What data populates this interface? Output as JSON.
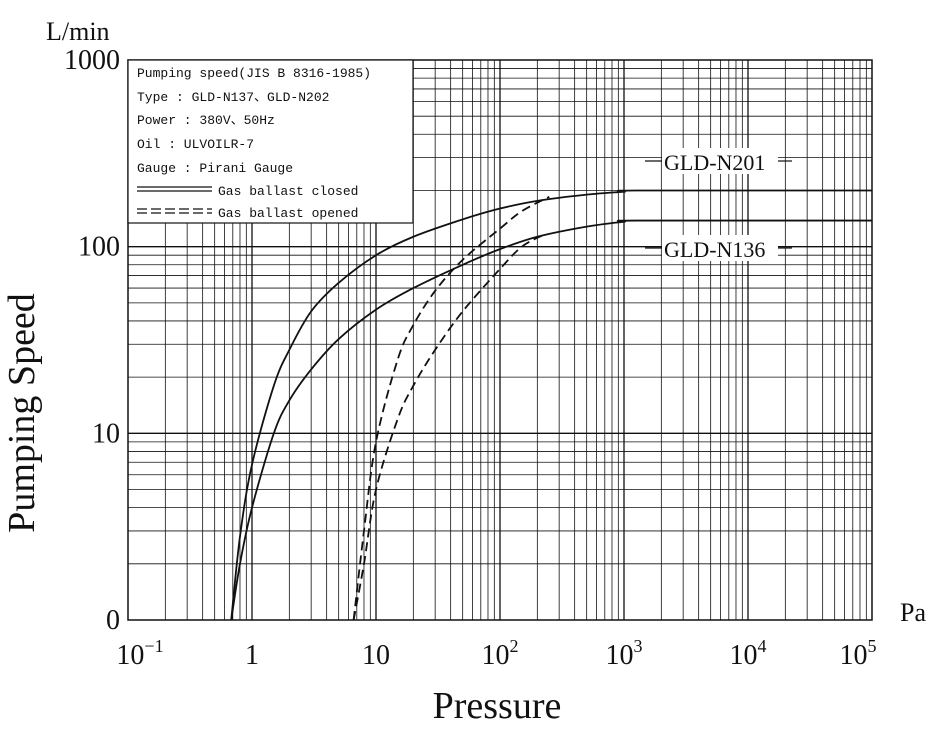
{
  "chart_data": {
    "type": "line",
    "xlabel": "Pressure",
    "ylabel": "Pumping Speed",
    "x_unit": "Pa",
    "y_unit": "L/min",
    "x_scale": "log",
    "y_scale": "log (0 at bottom)",
    "xlim": [
      0.1,
      100000
    ],
    "ylim": [
      1,
      1000
    ],
    "x_ticks": [
      {
        "value": 0.1,
        "base": "10",
        "exp": "−1"
      },
      {
        "value": 1,
        "base": "1",
        "exp": ""
      },
      {
        "value": 10,
        "base": "10",
        "exp": ""
      },
      {
        "value": 100,
        "base": "10",
        "exp": "2"
      },
      {
        "value": 1000,
        "base": "10",
        "exp": "3"
      },
      {
        "value": 10000,
        "base": "10",
        "exp": "4"
      },
      {
        "value": 100000,
        "base": "10",
        "exp": "5"
      }
    ],
    "y_ticks": [
      {
        "value": 1,
        "label": "0"
      },
      {
        "value": 10,
        "label": "10"
      },
      {
        "value": 100,
        "label": "100"
      },
      {
        "value": 1000,
        "label": "1000"
      }
    ],
    "grid": true,
    "legend": {
      "position": "top-left",
      "lines": [
        "Pumping speed(JIS B 8316-1985)",
        "Type  : GLD-N137、GLD-N202",
        "Power : 380V、50Hz",
        "Oil   : ULVOILR-7",
        "Gauge : Pirani Gauge"
      ],
      "entries": [
        {
          "label": "Gas ballast closed",
          "style": "double-solid"
        },
        {
          "label": "Gas ballast opened",
          "style": "double-dashed"
        }
      ]
    },
    "series": [
      {
        "name": "GLD-N201",
        "gas_ballast": "closed",
        "style": "solid",
        "x": [
          0.68,
          0.8,
          1,
          1.5,
          2,
          3,
          5,
          10,
          20,
          50,
          100,
          200,
          500,
          1000,
          1300,
          100000
        ],
        "y": [
          1,
          2.8,
          6.8,
          18,
          28,
          45,
          64,
          90,
          113,
          140,
          160,
          176,
          190,
          197,
          200,
          200
        ]
      },
      {
        "name": "GLD-N136",
        "gas_ballast": "closed",
        "style": "solid",
        "x": [
          0.68,
          0.8,
          1,
          1.5,
          2,
          3,
          5,
          10,
          20,
          50,
          100,
          200,
          500,
          1000,
          1300,
          100000
        ],
        "y": [
          1,
          2,
          4,
          10,
          15,
          22,
          32,
          46,
          60,
          80,
          97,
          113,
          128,
          136,
          138,
          138
        ]
      },
      {
        "name": "GLD-N201 (gas ballast opened)",
        "gas_ballast": "opened",
        "style": "dashed",
        "x": [
          6.6,
          8,
          10,
          15,
          20,
          30,
          50,
          100,
          150,
          250
        ],
        "y": [
          1,
          3,
          9,
          25,
          38,
          58,
          85,
          125,
          155,
          185
        ]
      },
      {
        "name": "GLD-N136 (gas ballast opened)",
        "gas_ballast": "opened",
        "style": "dashed",
        "x": [
          6.6,
          8,
          10,
          15,
          20,
          30,
          50,
          100,
          150,
          220
        ],
        "y": [
          1,
          2,
          5,
          12,
          18,
          28,
          45,
          76,
          100,
          115
        ]
      }
    ],
    "annotations": [
      "GLD-N201",
      "GLD-N136"
    ]
  }
}
